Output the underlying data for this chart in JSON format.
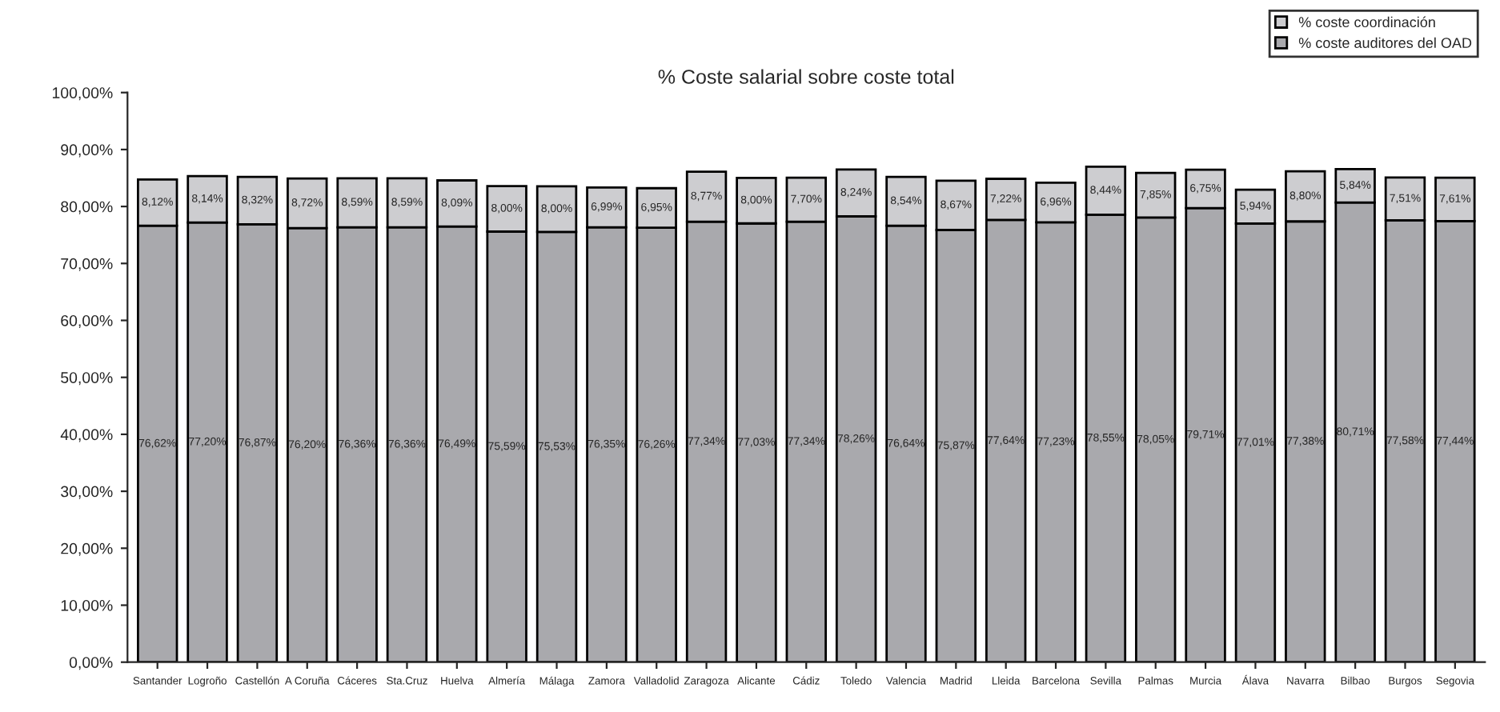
{
  "chart_data": {
    "type": "bar",
    "title": "% Coste salarial sobre coste total",
    "stacked": true,
    "legend": "top right",
    "grid": false,
    "categories": [
      "Santander",
      "Logroño",
      "Castellón",
      "A Coruña",
      "Cáceres",
      "Sta.Cruz",
      "Huelva",
      "Almería",
      "Málaga",
      "Zamora",
      "Valladolid",
      "Zaragoza",
      "Alicante",
      "Cádiz",
      "Toledo",
      "Valencia",
      "Madrid",
      "Lleida",
      "Barcelona",
      "Sevilla",
      "Palmas",
      "Murcia",
      "Álava",
      "Navarra",
      "Bilbao",
      "Burgos",
      "Segovia"
    ],
    "series": [
      {
        "name": "% coste auditores del OAD",
        "color": "#a9a9ad",
        "values": [
          76.62,
          77.2,
          76.87,
          76.2,
          76.36,
          76.36,
          76.49,
          75.59,
          75.53,
          76.35,
          76.26,
          77.34,
          77.03,
          77.34,
          78.26,
          76.64,
          75.87,
          77.64,
          77.23,
          78.55,
          78.05,
          79.71,
          77.01,
          77.38,
          80.71,
          77.58,
          77.44
        ],
        "value_labels": [
          "76,62%",
          "77,20%",
          "76,87%",
          "76,20%",
          "76,36%",
          "76,36%",
          "76,49%",
          "75,59%",
          "75,53%",
          "76,35%",
          "76,26%",
          "77,34%",
          "77,03%",
          "77,34%",
          "78,26%",
          "76,64%",
          "75,87%",
          "77,64%",
          "77,23%",
          "78,55%",
          "78,05%",
          "79,71%",
          "77,01%",
          "77,38%",
          "80,71%",
          "77,58%",
          "77,44%"
        ]
      },
      {
        "name": "% coste coordinación",
        "color": "#cdcdd0",
        "values": [
          8.12,
          8.14,
          8.32,
          8.72,
          8.59,
          8.59,
          8.09,
          8.0,
          8.0,
          6.99,
          6.95,
          8.77,
          8.0,
          7.7,
          8.24,
          8.54,
          8.67,
          7.22,
          6.96,
          8.44,
          7.85,
          6.75,
          5.94,
          8.8,
          5.84,
          7.51,
          7.61
        ],
        "value_labels": [
          "8,12%",
          "8,14%",
          "8,32%",
          "8,72%",
          "8,59%",
          "8,59%",
          "8,09%",
          "8,00%",
          "8,00%",
          "6,99%",
          "6,95%",
          "8,77%",
          "8,00%",
          "7,70%",
          "8,24%",
          "8,54%",
          "8,67%",
          "7,22%",
          "6,96%",
          "8,44%",
          "7,85%",
          "6,75%",
          "5,94%",
          "8,80%",
          "5,84%",
          "7,51%",
          "7,61%"
        ]
      }
    ],
    "ylim": [
      0,
      100
    ],
    "yticks": [
      {
        "value": 0,
        "label": "0,00%"
      },
      {
        "value": 10,
        "label": "10,00%"
      },
      {
        "value": 20,
        "label": "20,00%"
      },
      {
        "value": 30,
        "label": "30,00%"
      },
      {
        "value": 40,
        "label": "40,00%"
      },
      {
        "value": 50,
        "label": "50,00%"
      },
      {
        "value": 60,
        "label": "60,00%"
      },
      {
        "value": 70,
        "label": "70,00%"
      },
      {
        "value": 80,
        "label": "80,00%"
      },
      {
        "value": 90,
        "label": "90,00%"
      },
      {
        "value": 100,
        "label": "100,00%"
      }
    ]
  }
}
